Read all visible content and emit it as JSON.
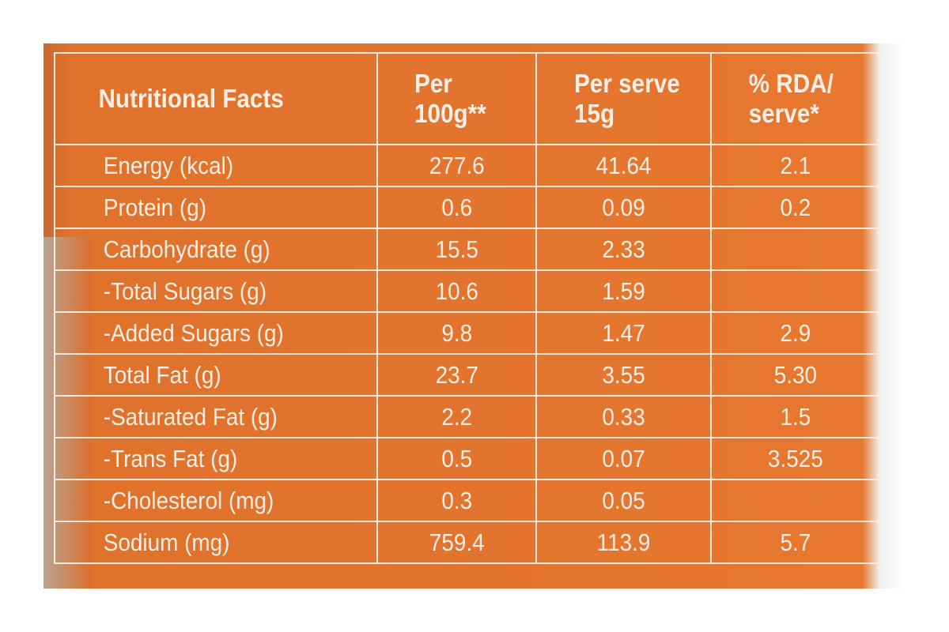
{
  "table": {
    "headers": [
      "Nutritional Facts",
      "Per 100g**",
      "Per serve 15g",
      "% RDA/ serve*"
    ],
    "rows": [
      {
        "nutrient": "Energy (kcal)",
        "per_100g": "277.6",
        "per_serve": "41.64",
        "rda": "2.1"
      },
      {
        "nutrient": "Protein (g)",
        "per_100g": "0.6",
        "per_serve": "0.09",
        "rda": "0.2"
      },
      {
        "nutrient": "Carbohydrate (g)",
        "per_100g": "15.5",
        "per_serve": "2.33",
        "rda": ""
      },
      {
        "nutrient": "-Total Sugars (g)",
        "per_100g": "10.6",
        "per_serve": "1.59",
        "rda": ""
      },
      {
        "nutrient": "-Added Sugars (g)",
        "per_100g": "9.8",
        "per_serve": "1.47",
        "rda": "2.9"
      },
      {
        "nutrient": "Total Fat (g)",
        "per_100g": "23.7",
        "per_serve": "3.55",
        "rda": "5.30"
      },
      {
        "nutrient": "-Saturated Fat (g)",
        "per_100g": "2.2",
        "per_serve": "0.33",
        "rda": "1.5"
      },
      {
        "nutrient": "-Trans Fat (g)",
        "per_100g": "0.5",
        "per_serve": "0.07",
        "rda": "3.525"
      },
      {
        "nutrient": "-Cholesterol (mg)",
        "per_100g": "0.3",
        "per_serve": "0.05",
        "rda": ""
      },
      {
        "nutrient": "Sodium (mg)",
        "per_100g": "759.4",
        "per_serve": "113.9",
        "rda": "5.7"
      }
    ]
  },
  "colors": {
    "label_orange": "#e3742d",
    "text": "#fbeee4"
  }
}
